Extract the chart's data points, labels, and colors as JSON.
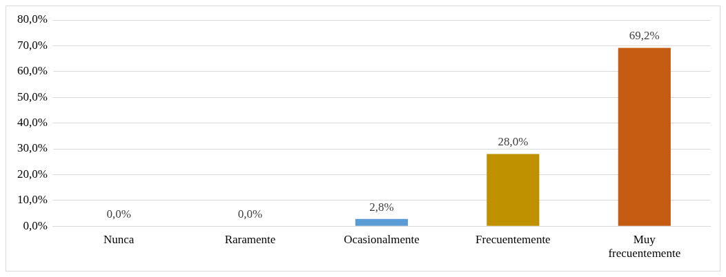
{
  "chart_data": {
    "type": "bar",
    "categories": [
      "Nunca",
      "Raramente",
      "Ocasionalmente",
      "Frecuentemente",
      "Muy frecuentemente"
    ],
    "values": [
      0,
      0,
      2.8,
      28.0,
      69.2
    ],
    "colors": [
      "#5b9bd5",
      "#5b9bd5",
      "#5b9bd5",
      "#bf9000",
      "#c55a11"
    ],
    "value_labels": [
      "0,0%",
      "0,0%",
      "2,8%",
      "28,0%",
      "69,2%"
    ],
    "ylim": [
      0,
      80
    ],
    "yticks": [
      {
        "value": 0,
        "label": "0,0%"
      },
      {
        "value": 10,
        "label": "10,0%"
      },
      {
        "value": 20,
        "label": "20,0%"
      },
      {
        "value": 30,
        "label": "30,0%"
      },
      {
        "value": 40,
        "label": "40,0%"
      },
      {
        "value": 50,
        "label": "50,0%"
      },
      {
        "value": 60,
        "label": "60,0%"
      },
      {
        "value": 70,
        "label": "70,0%"
      },
      {
        "value": 80,
        "label": "80,0%"
      }
    ],
    "grid": "y",
    "legend": false
  }
}
